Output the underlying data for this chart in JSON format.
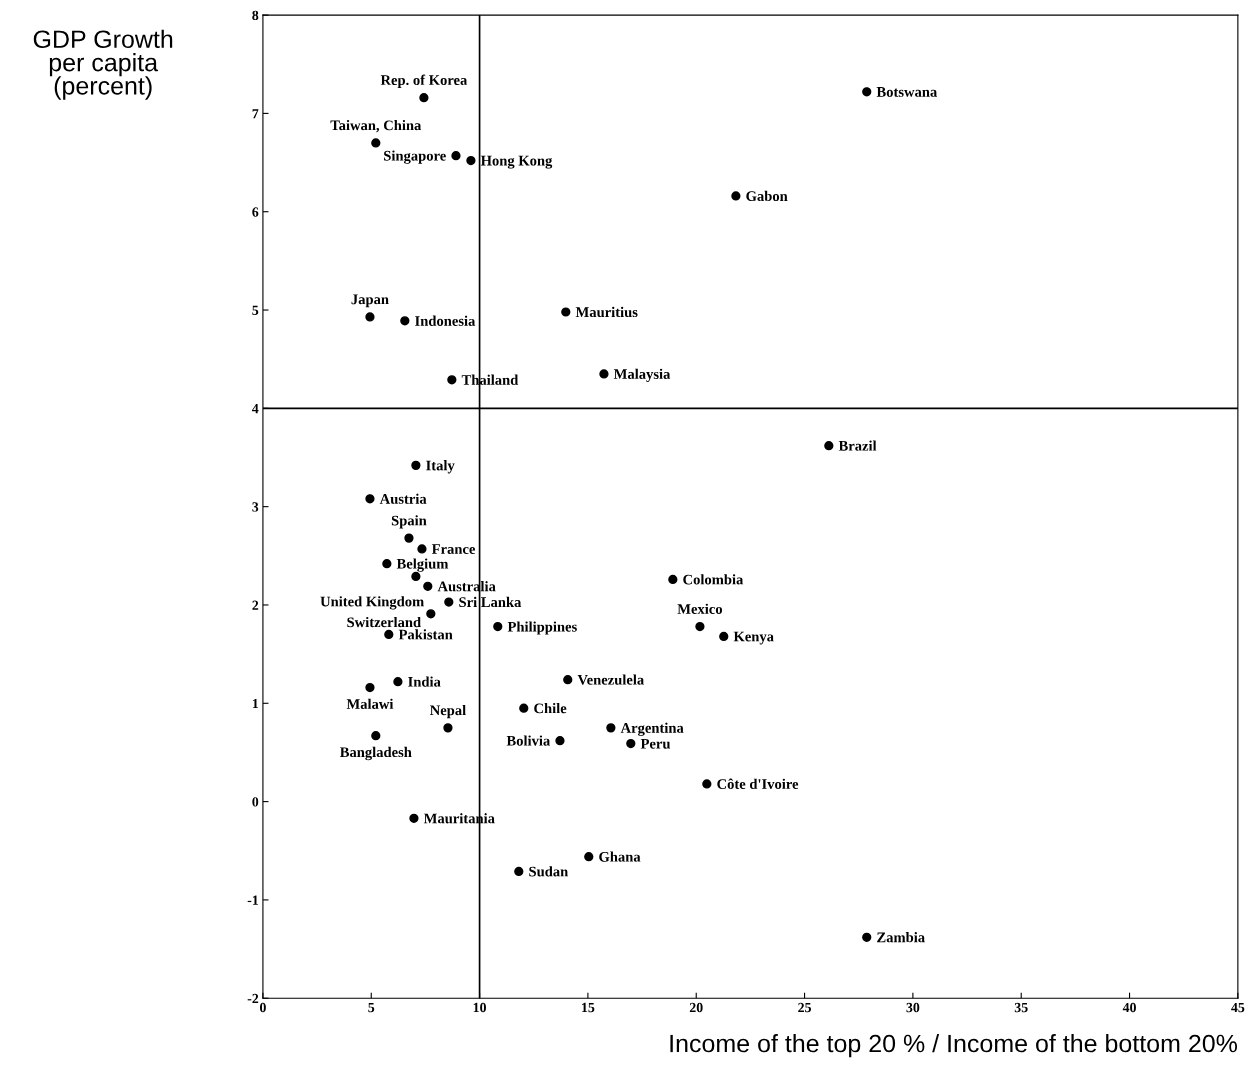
{
  "chart_data": {
    "type": "scatter",
    "xlabel": "Income of the top 20 % / Income of the bottom 20%",
    "ylabel": "GDP Growth\nper capita\n(percent)",
    "xlim": [
      0,
      45
    ],
    "xticks": [
      0,
      5,
      10,
      15,
      20,
      25,
      30,
      35,
      40,
      45
    ],
    "ylim": [
      -2,
      8
    ],
    "yticks": [
      -2,
      -1,
      0,
      1,
      2,
      3,
      4,
      5,
      6,
      7,
      8
    ],
    "grid": false,
    "marker": "circle",
    "legend": false,
    "ref_lines": [
      {
        "axis": "x",
        "value": 10,
        "color": "#000000"
      },
      {
        "axis": "y",
        "value": 4,
        "color": "#000000"
      }
    ],
    "series": [
      {
        "color": "#000000",
        "x": [
          7.43,
          27.87,
          5.21,
          8.91,
          9.6,
          21.83,
          4.94,
          6.55,
          13.98,
          15.74,
          8.72,
          26.12,
          7.06,
          4.94,
          6.74,
          7.34,
          5.72,
          7.06,
          7.61,
          8.58,
          7.75,
          5.81,
          10.84,
          18.92,
          20.17,
          21.27,
          14.07,
          6.23,
          4.94,
          12.04,
          8.54,
          16.06,
          5.21,
          13.71,
          16.98,
          20.49,
          6.97,
          15.04,
          11.81,
          27.87
        ],
        "values": [
          7.16,
          7.22,
          6.7,
          6.57,
          6.52,
          6.16,
          4.93,
          4.89,
          4.98,
          4.35,
          4.29,
          3.62,
          3.42,
          3.08,
          2.68,
          2.57,
          2.42,
          2.29,
          2.19,
          2.03,
          1.91,
          1.7,
          1.78,
          2.26,
          1.78,
          1.68,
          1.24,
          1.22,
          1.16,
          0.95,
          0.75,
          0.75,
          0.67,
          0.62,
          0.59,
          0.18,
          -0.17,
          -0.56,
          -0.71,
          -1.38
        ]
      }
    ],
    "annotations": [
      {
        "text": "Rep. of Korea",
        "x": 7.43,
        "y": 7.16
      },
      {
        "text": "Botswana",
        "x": 27.87,
        "y": 7.22
      },
      {
        "text": "Taiwan, China",
        "x": 5.21,
        "y": 6.7
      },
      {
        "text": "Singapore",
        "x": 8.91,
        "y": 6.57
      },
      {
        "text": "Hong Kong",
        "x": 9.6,
        "y": 6.52
      },
      {
        "text": "Gabon",
        "x": 21.83,
        "y": 6.16
      },
      {
        "text": "Japan",
        "x": 4.94,
        "y": 4.93
      },
      {
        "text": "Indonesia",
        "x": 6.55,
        "y": 4.89
      },
      {
        "text": "Mauritius",
        "x": 13.98,
        "y": 4.98
      },
      {
        "text": "Malaysia",
        "x": 15.74,
        "y": 4.35
      },
      {
        "text": "Thailand",
        "x": 8.72,
        "y": 4.29
      },
      {
        "text": "Brazil",
        "x": 26.12,
        "y": 3.62
      },
      {
        "text": "Italy",
        "x": 7.06,
        "y": 3.42
      },
      {
        "text": "Austria",
        "x": 4.94,
        "y": 3.08
      },
      {
        "text": "Spain",
        "x": 6.74,
        "y": 2.68
      },
      {
        "text": "France",
        "x": 7.34,
        "y": 2.57
      },
      {
        "text": "Belgium",
        "x": 5.72,
        "y": 2.42
      },
      {
        "text": "United Kingdom",
        "x": 7.06,
        "y": 2.29
      },
      {
        "text": "Australia",
        "x": 7.61,
        "y": 2.19
      },
      {
        "text": "Sri Lanka",
        "x": 8.58,
        "y": 2.03
      },
      {
        "text": "Switzerland",
        "x": 7.75,
        "y": 1.91
      },
      {
        "text": "Pakistan",
        "x": 5.81,
        "y": 1.7
      },
      {
        "text": "Philippines",
        "x": 10.84,
        "y": 1.78
      },
      {
        "text": "Colombia",
        "x": 18.92,
        "y": 2.26
      },
      {
        "text": "Mexico",
        "x": 20.17,
        "y": 1.78
      },
      {
        "text": "Kenya",
        "x": 21.27,
        "y": 1.68
      },
      {
        "text": "Venezulela",
        "x": 14.07,
        "y": 1.24
      },
      {
        "text": "India",
        "x": 6.23,
        "y": 1.22
      },
      {
        "text": "Malawi",
        "x": 4.94,
        "y": 1.16
      },
      {
        "text": "Chile",
        "x": 12.04,
        "y": 0.95
      },
      {
        "text": "Nepal",
        "x": 8.54,
        "y": 0.75
      },
      {
        "text": "Argentina",
        "x": 16.06,
        "y": 0.75
      },
      {
        "text": "Bangladesh",
        "x": 5.21,
        "y": 0.67
      },
      {
        "text": "Bolivia",
        "x": 13.71,
        "y": 0.62
      },
      {
        "text": "Peru",
        "x": 16.98,
        "y": 0.59
      },
      {
        "text": "Côte d'Ivoire",
        "x": 20.49,
        "y": 0.18
      },
      {
        "text": "Mauritania",
        "x": 6.97,
        "y": -0.17
      },
      {
        "text": "Ghana",
        "x": 15.04,
        "y": -0.56
      },
      {
        "text": "Sudan",
        "x": 11.81,
        "y": -0.71
      },
      {
        "text": "Zambia",
        "x": 27.87,
        "y": -1.38
      }
    ]
  }
}
